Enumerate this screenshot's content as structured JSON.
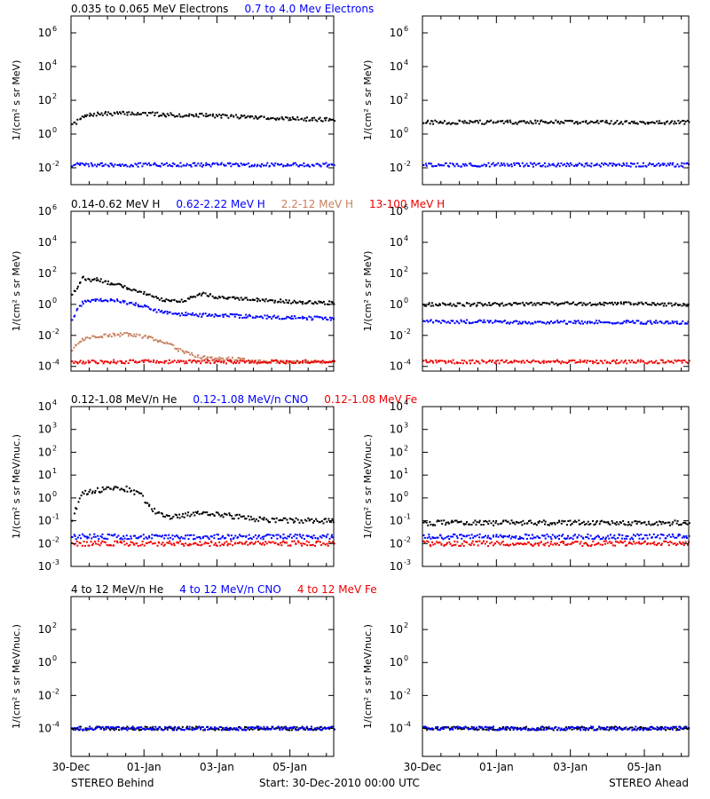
{
  "colors": {
    "black": "#000000",
    "blue": "#0000ff",
    "tan": "#c87f5e",
    "red": "#ee0000"
  },
  "x_tick_labels": [
    "30-Dec",
    "01-Jan",
    "03-Jan",
    "05-Jan"
  ],
  "footer": {
    "left": "STEREO Behind",
    "center": "Start: 30-Dec-2010 00:00 UTC",
    "right": "STEREO Ahead"
  },
  "chart_data": [
    {
      "type": "scatter",
      "row": 1,
      "legend": [
        {
          "text": "0.035 to 0.065 MeV Electrons",
          "color": "#000000"
        },
        {
          "text": "0.7 to 4.0 Mev Electrons",
          "color": "#0000ff"
        }
      ],
      "ylabel": "1/(cm² s sr MeV)",
      "y_scale": "log",
      "ylim": [
        0.001,
        10000000
      ],
      "y_ticks": [
        {
          "base": "10",
          "exp": "6",
          "v": 1000000
        },
        {
          "base": "10",
          "exp": "4",
          "v": 10000
        },
        {
          "base": "10",
          "exp": "2",
          "v": 100
        },
        {
          "base": "10",
          "exp": "0",
          "v": 1
        },
        {
          "base": "10",
          "exp": "-2",
          "v": 0.01
        }
      ],
      "x_unit": "days since 30-Dec-2010",
      "xlim": [
        0,
        7.2
      ],
      "panels": [
        {
          "spacecraft": "STEREO Behind",
          "series": [
            {
              "color": "#000000",
              "x": [
                0,
                0.3,
                0.6,
                1,
                1.5,
                2,
                2.5,
                3,
                3.5,
                4,
                5,
                6,
                7.2
              ],
              "y": [
                3,
                10,
                15,
                16,
                17,
                16,
                14,
                13,
                13,
                12,
                10,
                8,
                7
              ]
            },
            {
              "color": "#0000ff",
              "x": [
                0,
                7.2
              ],
              "y": [
                0.015,
                0.015
              ]
            }
          ]
        },
        {
          "spacecraft": "STEREO Ahead",
          "series": [
            {
              "color": "#000000",
              "x": [
                0,
                3,
                7.2
              ],
              "y": [
                5,
                5,
                5
              ]
            },
            {
              "color": "#0000ff",
              "x": [
                0,
                7.2
              ],
              "y": [
                0.015,
                0.015
              ]
            }
          ]
        }
      ]
    },
    {
      "type": "scatter",
      "row": 2,
      "legend": [
        {
          "text": "0.14-0.62 MeV H",
          "color": "#000000"
        },
        {
          "text": "0.62-2.22 MeV H",
          "color": "#0000ff"
        },
        {
          "text": "2.2-12 MeV H",
          "color": "#c87f5e"
        },
        {
          "text": "13-100 MeV H",
          "color": "#ee0000"
        }
      ],
      "ylabel": "1/(cm² s sr MeV)",
      "y_scale": "log",
      "ylim": [
        5e-05,
        1000000
      ],
      "y_ticks": [
        {
          "base": "10",
          "exp": "6",
          "v": 1000000
        },
        {
          "base": "10",
          "exp": "4",
          "v": 10000
        },
        {
          "base": "10",
          "exp": "2",
          "v": 100
        },
        {
          "base": "10",
          "exp": "0",
          "v": 1
        },
        {
          "base": "10",
          "exp": "-2",
          "v": 0.01
        },
        {
          "base": "10",
          "exp": "-4",
          "v": 0.0001
        }
      ],
      "x_unit": "days since 30-Dec-2010",
      "xlim": [
        0,
        7.2
      ],
      "panels": [
        {
          "spacecraft": "STEREO Behind",
          "series": [
            {
              "color": "#000000",
              "x": [
                0,
                0.15,
                0.3,
                0.5,
                0.7,
                1,
                1.3,
                1.6,
                2,
                2.4,
                2.8,
                3.2,
                3.5,
                4,
                4.5,
                5,
                5.5,
                6,
                6.5,
                7.2
              ],
              "y": [
                5,
                10,
                50,
                30,
                40,
                25,
                20,
                10,
                5,
                2,
                1.5,
                2,
                5,
                3,
                2.5,
                2,
                1.7,
                1.5,
                1.3,
                1.2
              ]
            },
            {
              "color": "#0000ff",
              "x": [
                0,
                0.15,
                0.3,
                0.5,
                0.7,
                1,
                1.3,
                1.6,
                2,
                2.4,
                2.8,
                3.2,
                3.5,
                4,
                4.5,
                5,
                5.5,
                6,
                6.5,
                7.2
              ],
              "y": [
                0.1,
                0.5,
                1.3,
                1.5,
                2,
                2,
                1.6,
                1.2,
                0.7,
                0.35,
                0.25,
                0.22,
                0.2,
                0.2,
                0.18,
                0.16,
                0.15,
                0.14,
                0.13,
                0.12
              ]
            },
            {
              "color": "#c87f5e",
              "x": [
                0,
                0.15,
                0.3,
                0.6,
                1,
                1.5,
                2,
                2.5,
                3,
                3.5,
                4,
                4.5,
                5,
                6,
                7.2
              ],
              "y": [
                0.001,
                0.003,
                0.005,
                0.008,
                0.01,
                0.012,
                0.008,
                0.004,
                0.001,
                0.0004,
                0.0003,
                0.0003,
                0.0002,
                0.0002,
                0.0002
              ]
            },
            {
              "color": "#ee0000",
              "x": [
                0,
                7.2
              ],
              "y": [
                0.0002,
                0.0002
              ]
            }
          ]
        },
        {
          "spacecraft": "STEREO Ahead",
          "series": [
            {
              "color": "#000000",
              "x": [
                0,
                2,
                4,
                5,
                7.2
              ],
              "y": [
                1,
                1,
                1.1,
                1.1,
                1
              ]
            },
            {
              "color": "#0000ff",
              "x": [
                0,
                3,
                7.2
              ],
              "y": [
                0.08,
                0.07,
                0.07
              ]
            },
            {
              "color": "#ee0000",
              "x": [
                0,
                7.2
              ],
              "y": [
                0.0002,
                0.0002
              ]
            }
          ]
        }
      ]
    },
    {
      "type": "scatter",
      "row": 3,
      "legend": [
        {
          "text": "0.12-1.08 MeV/n He",
          "color": "#000000"
        },
        {
          "text": "0.12-1.08 MeV/n CNO",
          "color": "#0000ff"
        },
        {
          "text": "0.12-1.08 MeV Fe",
          "color": "#ee0000"
        }
      ],
      "ylabel": "1/(cm² s sr MeV/nuc.)",
      "y_scale": "log",
      "ylim": [
        0.001,
        10000
      ],
      "y_ticks": [
        {
          "base": "10",
          "exp": "4",
          "v": 10000
        },
        {
          "base": "10",
          "exp": "3",
          "v": 1000
        },
        {
          "base": "10",
          "exp": "2",
          "v": 100
        },
        {
          "base": "10",
          "exp": "1",
          "v": 10
        },
        {
          "base": "10",
          "exp": "0",
          "v": 1
        },
        {
          "base": "10",
          "exp": "-1",
          "v": 0.1
        },
        {
          "base": "10",
          "exp": "-2",
          "v": 0.01
        },
        {
          "base": "10",
          "exp": "-3",
          "v": 0.001
        }
      ],
      "x_unit": "days since 30-Dec-2010",
      "xlim": [
        0,
        7.2
      ],
      "panels": [
        {
          "spacecraft": "STEREO Behind",
          "series": [
            {
              "color": "#000000",
              "x": [
                0,
                0.15,
                0.3,
                0.6,
                1,
                1.5,
                1.9,
                2.2,
                2.6,
                3,
                3.5,
                4,
                4.5,
                5,
                6,
                7.2
              ],
              "y": [
                0.1,
                0.5,
                1.5,
                2,
                2.5,
                2.5,
                1.3,
                0.3,
                0.15,
                0.15,
                0.25,
                0.2,
                0.15,
                0.12,
                0.1,
                0.1
              ]
            },
            {
              "color": "#0000ff",
              "x": [
                0,
                7.2
              ],
              "y": [
                0.02,
                0.02
              ]
            },
            {
              "color": "#ee0000",
              "x": [
                0,
                7.2
              ],
              "y": [
                0.01,
                0.01
              ]
            }
          ]
        },
        {
          "spacecraft": "STEREO Ahead",
          "series": [
            {
              "color": "#000000",
              "x": [
                0,
                7.2
              ],
              "y": [
                0.08,
                0.08
              ]
            },
            {
              "color": "#0000ff",
              "x": [
                0,
                7.2
              ],
              "y": [
                0.02,
                0.02
              ]
            },
            {
              "color": "#ee0000",
              "x": [
                0,
                7.2
              ],
              "y": [
                0.01,
                0.01
              ]
            }
          ]
        }
      ]
    },
    {
      "type": "scatter",
      "row": 4,
      "legend": [
        {
          "text": "4 to 12 MeV/n He",
          "color": "#000000"
        },
        {
          "text": "4 to 12 MeV/n CNO",
          "color": "#0000ff"
        },
        {
          "text": "4 to 12 MeV Fe",
          "color": "#ee0000"
        }
      ],
      "ylabel": "1/(cm² s sr MeV/nuc.)",
      "y_scale": "log",
      "ylim": [
        2e-06,
        10000
      ],
      "y_ticks": [
        {
          "base": "10",
          "exp": "2",
          "v": 100
        },
        {
          "base": "10",
          "exp": "0",
          "v": 1
        },
        {
          "base": "10",
          "exp": "-2",
          "v": 0.01
        },
        {
          "base": "10",
          "exp": "-4",
          "v": 0.0001
        }
      ],
      "x_unit": "days since 30-Dec-2010",
      "xlim": [
        0,
        7.2
      ],
      "panels": [
        {
          "spacecraft": "STEREO Behind",
          "series": [
            {
              "color": "#000000",
              "x": [
                0,
                7.2
              ],
              "y": [
                0.0001,
                0.0001
              ]
            },
            {
              "color": "#0000ff",
              "x": [
                0,
                7.2
              ],
              "y": [
                0.0001,
                0.0001
              ]
            }
          ]
        },
        {
          "spacecraft": "STEREO Ahead",
          "series": [
            {
              "color": "#000000",
              "x": [
                0,
                7.2
              ],
              "y": [
                0.0001,
                0.0001
              ]
            },
            {
              "color": "#0000ff",
              "x": [
                0,
                7.2
              ],
              "y": [
                0.0001,
                0.0001
              ]
            }
          ]
        }
      ]
    }
  ]
}
